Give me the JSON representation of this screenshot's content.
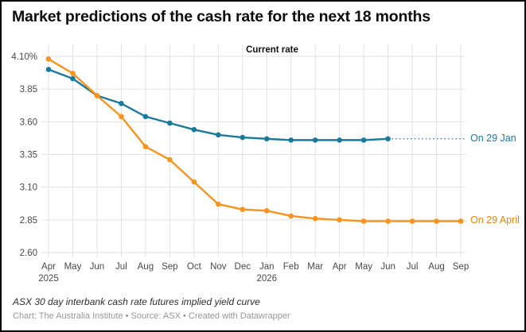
{
  "header": {
    "title": "Market predictions of the cash rate for the next 18 months"
  },
  "chart_data": {
    "type": "line",
    "title": "Market predictions of the cash rate for the next 18 months",
    "annotation": "Current rate",
    "xlabel": "",
    "ylabel": "",
    "ylim": [
      2.6,
      4.1
    ],
    "grid": true,
    "x": [
      {
        "label": "Apr",
        "year": "2025"
      },
      {
        "label": "May"
      },
      {
        "label": "Jun"
      },
      {
        "label": "Jul"
      },
      {
        "label": "Aug"
      },
      {
        "label": "Sep"
      },
      {
        "label": "Oct"
      },
      {
        "label": "Nov"
      },
      {
        "label": "Dec"
      },
      {
        "label": "Jan",
        "year": "2026"
      },
      {
        "label": "Feb"
      },
      {
        "label": "Mar"
      },
      {
        "label": "Apr"
      },
      {
        "label": "May"
      },
      {
        "label": "Jun"
      },
      {
        "label": "Jul"
      },
      {
        "label": "Aug"
      },
      {
        "label": "Sep"
      }
    ],
    "yticks": [
      {
        "value": 4.1,
        "label": "4.10%"
      },
      {
        "value": 3.85,
        "label": "3.85"
      },
      {
        "value": 3.6,
        "label": "3.60"
      },
      {
        "value": 3.35,
        "label": "3.35"
      },
      {
        "value": 3.1,
        "label": "3.10"
      },
      {
        "value": 2.85,
        "label": "2.85"
      },
      {
        "value": 2.6,
        "label": "2.60"
      }
    ],
    "series": [
      {
        "name": "On 29 Jan",
        "color": "#1a7a9c",
        "label_color": "#1a7a9c",
        "leader": "dotted",
        "values": [
          4.0,
          3.93,
          3.8,
          3.74,
          3.64,
          3.59,
          3.54,
          3.5,
          3.48,
          3.47,
          3.46,
          3.46,
          3.46,
          3.46,
          3.47
        ]
      },
      {
        "name": "On 29 April",
        "color": "#f7941d",
        "label_color": "#e8830d",
        "leader": "plain",
        "values": [
          4.08,
          3.97,
          3.8,
          3.64,
          3.41,
          3.31,
          3.14,
          2.97,
          2.93,
          2.92,
          2.88,
          2.86,
          2.85,
          2.84,
          2.84,
          2.84,
          2.84,
          2.84
        ]
      }
    ],
    "legend_position": "right of line ends",
    "colors": {
      "grid": "#e2e2e2",
      "axis_text": "#494949",
      "leader_gray": "#c9c9c9"
    }
  },
  "footer": {
    "note": "ASX 30 day interbank cash rate futures implied yield curve",
    "credit": "Chart: The Australia Institute  • Source: ASX • Created with Datawrapper"
  }
}
